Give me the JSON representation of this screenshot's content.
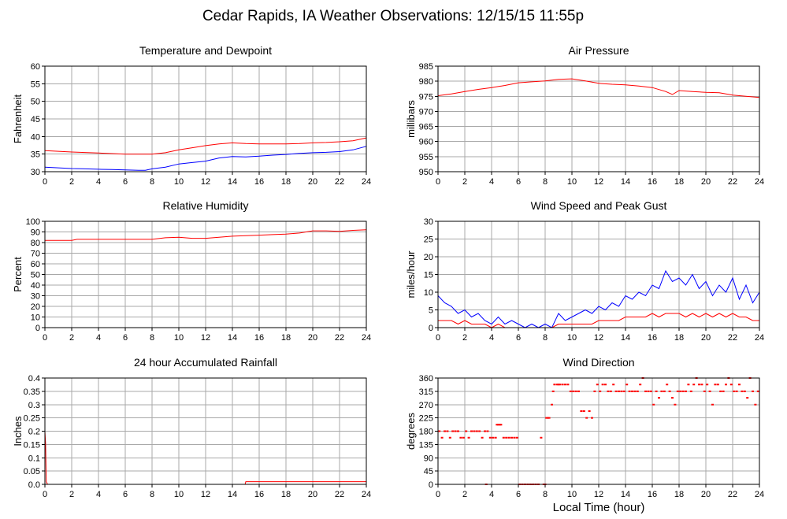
{
  "figure": {
    "title": "Cedar Rapids, IA Weather Observations: 12/15/15 11:55p",
    "xlabel": "Local Time (hour)"
  },
  "colors": {
    "red": "#ff0000",
    "blue": "#0000ff"
  },
  "chart_data": [
    {
      "id": "temp",
      "type": "line",
      "title": "Temperature and Dewpoint",
      "ylabel": "Fahrenheit",
      "xlim": [
        0,
        24
      ],
      "ylim": [
        30,
        60
      ],
      "xticks": [
        0,
        2,
        4,
        6,
        8,
        10,
        12,
        14,
        16,
        18,
        20,
        22,
        24
      ],
      "yticks": [
        30,
        35,
        40,
        45,
        50,
        55,
        60
      ],
      "grid": true,
      "series": [
        {
          "color": "#ff0000",
          "x": [
            0,
            2,
            4,
            6,
            8,
            9,
            10,
            11,
            12,
            13,
            14,
            15,
            16,
            17,
            18,
            19,
            20,
            21,
            22,
            23,
            24
          ],
          "y": [
            36.0,
            35.6,
            35.3,
            35.0,
            35.0,
            35.4,
            36.2,
            36.8,
            37.4,
            37.9,
            38.2,
            38.0,
            37.9,
            37.9,
            37.9,
            38.0,
            38.2,
            38.3,
            38.5,
            38.8,
            39.6
          ]
        },
        {
          "color": "#0000ff",
          "x": [
            0,
            1,
            2,
            3,
            4,
            5,
            6,
            7,
            7.5,
            8,
            9,
            10,
            11,
            12,
            13,
            14,
            15,
            16,
            17,
            18,
            19,
            20,
            21,
            22,
            23,
            24
          ],
          "y": [
            31.3,
            31.1,
            30.9,
            30.8,
            30.7,
            30.6,
            30.5,
            30.4,
            30.4,
            30.8,
            31.3,
            32.2,
            32.6,
            33.0,
            33.9,
            34.3,
            34.2,
            34.4,
            34.7,
            34.9,
            35.2,
            35.4,
            35.5,
            35.7,
            36.2,
            37.2
          ]
        }
      ]
    },
    {
      "id": "pressure",
      "type": "line",
      "title": "Air Pressure",
      "ylabel": "millibars",
      "xlim": [
        0,
        24
      ],
      "ylim": [
        950,
        985
      ],
      "xticks": [
        0,
        2,
        4,
        6,
        8,
        10,
        12,
        14,
        16,
        18,
        20,
        22,
        24
      ],
      "yticks": [
        950,
        955,
        960,
        965,
        970,
        975,
        980,
        985
      ],
      "grid": true,
      "series": [
        {
          "color": "#ff0000",
          "x": [
            0,
            1,
            2,
            3,
            4,
            5,
            6,
            7,
            8,
            9,
            10,
            11,
            12,
            13,
            14,
            15,
            16,
            17,
            17.5,
            18,
            19,
            20,
            21,
            22,
            23,
            24
          ],
          "y": [
            975.2,
            975.8,
            976.6,
            977.3,
            977.9,
            978.6,
            979.5,
            979.8,
            980.1,
            980.6,
            980.8,
            980.1,
            979.3,
            979.0,
            978.8,
            978.4,
            977.9,
            976.6,
            975.6,
            976.9,
            976.6,
            976.3,
            976.2,
            975.4,
            975.0,
            974.6
          ]
        }
      ]
    },
    {
      "id": "humidity",
      "type": "line",
      "title": "Relative Humidity",
      "ylabel": "Percent",
      "xlim": [
        0,
        24
      ],
      "ylim": [
        0,
        100
      ],
      "xticks": [
        0,
        2,
        4,
        6,
        8,
        10,
        12,
        14,
        16,
        18,
        20,
        22,
        24
      ],
      "yticks": [
        0,
        10,
        20,
        30,
        40,
        50,
        60,
        70,
        80,
        90,
        100
      ],
      "grid": true,
      "series": [
        {
          "color": "#ff0000",
          "x": [
            0,
            2,
            2.4,
            4,
            6,
            8,
            9,
            10,
            11,
            12,
            13,
            14,
            15,
            16,
            17,
            18,
            19,
            20,
            21,
            22,
            23,
            24
          ],
          "y": [
            82.0,
            82.0,
            83.0,
            83.0,
            83.0,
            83.0,
            84.5,
            85.0,
            84.0,
            84.0,
            85.0,
            86.0,
            86.5,
            87.0,
            87.5,
            88.0,
            89.0,
            91.0,
            91.0,
            90.5,
            91.5,
            92.0
          ]
        }
      ]
    },
    {
      "id": "wind_speed",
      "type": "line",
      "title": "Wind Speed and Peak Gust",
      "ylabel": "miles/hour",
      "xlim": [
        0,
        24
      ],
      "ylim": [
        0,
        30
      ],
      "xticks": [
        0,
        2,
        4,
        6,
        8,
        10,
        12,
        14,
        16,
        18,
        20,
        22,
        24
      ],
      "yticks": [
        0,
        5,
        10,
        15,
        20,
        25,
        30
      ],
      "grid": true,
      "series": [
        {
          "color": "#0000ff",
          "x": [
            0,
            0.5,
            1,
            1.5,
            2,
            2.5,
            3,
            3.5,
            4,
            4.5,
            5,
            5.5,
            6,
            6.5,
            7,
            7.5,
            8,
            8.5,
            9,
            9.5,
            10,
            10.5,
            11,
            11.5,
            12,
            12.5,
            13,
            13.5,
            14,
            14.5,
            15,
            15.5,
            16,
            16.5,
            17,
            17.5,
            18,
            18.5,
            19,
            19.5,
            20,
            20.5,
            21,
            21.5,
            22,
            22.5,
            23,
            23.5,
            24
          ],
          "y": [
            9,
            7,
            6,
            4,
            5,
            3,
            4,
            2,
            1,
            3,
            1,
            2,
            1,
            0,
            1,
            0,
            1,
            0,
            4,
            2,
            3,
            4,
            5,
            4,
            6,
            5,
            7,
            6,
            9,
            8,
            10,
            9,
            12,
            11,
            16,
            13,
            14,
            12,
            15,
            11,
            13,
            9,
            12,
            10,
            14,
            8,
            12,
            7,
            10
          ]
        },
        {
          "color": "#ff0000",
          "x": [
            0,
            0.5,
            1,
            1.5,
            2,
            2.5,
            3,
            3.5,
            4,
            4.5,
            5,
            5.5,
            6,
            6.5,
            7,
            7.5,
            8,
            8.5,
            9,
            9.5,
            10,
            10.5,
            11,
            11.5,
            12,
            12.5,
            13,
            13.5,
            14,
            14.5,
            15,
            15.5,
            16,
            16.5,
            17,
            17.5,
            18,
            18.5,
            19,
            19.5,
            20,
            20.5,
            21,
            21.5,
            22,
            22.5,
            23,
            23.5,
            24
          ],
          "y": [
            2,
            2,
            2,
            1,
            2,
            1,
            1,
            1,
            0,
            1,
            0,
            0,
            0,
            0,
            0,
            0,
            0,
            0,
            1,
            1,
            1,
            1,
            1,
            1,
            2,
            2,
            2,
            2,
            3,
            3,
            3,
            3,
            4,
            3,
            4,
            4,
            4,
            3,
            4,
            3,
            4,
            3,
            4,
            3,
            4,
            3,
            3,
            2,
            2
          ]
        }
      ]
    },
    {
      "id": "rain",
      "type": "line",
      "title": "24 hour Accumulated Rainfall",
      "ylabel": "Inches",
      "xlim": [
        0,
        24
      ],
      "ylim": [
        0,
        0.4
      ],
      "xticks": [
        0,
        2,
        4,
        6,
        8,
        10,
        12,
        14,
        16,
        18,
        20,
        22,
        24
      ],
      "yticks": [
        0,
        0.05,
        0.1,
        0.15,
        0.2,
        0.25,
        0.3,
        0.35,
        0.4
      ],
      "ytick_labels": [
        "0.0",
        "0.05",
        "0.1",
        "0.15",
        "0.2",
        "0.25",
        "0.3",
        "0.35",
        "0.4"
      ],
      "grid": true,
      "series": [
        {
          "color": "#ff0000",
          "x": [
            0,
            0.05,
            0.1,
            0.2,
            14.95,
            15.0,
            24
          ],
          "y": [
            0.2,
            0.15,
            0.01,
            0.0,
            0.0,
            0.01,
            0.01
          ]
        }
      ]
    },
    {
      "id": "wind_dir",
      "type": "scatter",
      "title": "Wind Direction",
      "ylabel": "degrees",
      "xlim": [
        0,
        24
      ],
      "ylim": [
        0,
        360
      ],
      "xticks": [
        0,
        2,
        4,
        6,
        8,
        10,
        12,
        14,
        16,
        18,
        20,
        22,
        24
      ],
      "yticks": [
        0,
        45,
        90,
        135,
        180,
        225,
        270,
        315,
        360
      ],
      "grid": true,
      "series": [
        {
          "color": "#ff0000",
          "x": [
            0.1,
            0.3,
            0.5,
            0.7,
            0.9,
            1.1,
            1.3,
            1.5,
            1.7,
            1.9,
            2.1,
            2.3,
            2.5,
            2.7,
            2.9,
            3.1,
            3.3,
            3.5,
            3.7,
            3.9,
            4.1,
            4.3,
            4.5,
            4.7,
            4.9,
            5.1,
            5.3,
            5.5,
            5.7,
            5.9,
            6.1,
            6.3,
            6.5,
            6.7,
            6.9,
            7.1,
            7.3,
            7.5,
            7.7,
            7.9,
            8.1,
            8.3,
            8.5,
            8.7,
            8.9,
            9.1,
            9.3,
            9.5,
            9.7,
            9.9,
            10.1,
            10.3,
            10.5,
            10.7,
            10.9,
            11.1,
            11.3,
            11.5,
            11.7,
            11.9,
            12.1,
            12.3,
            12.5,
            12.7,
            12.9,
            13.1,
            13.3,
            13.5,
            13.7,
            13.9,
            14.1,
            14.3,
            14.5,
            14.7,
            14.9,
            15.1,
            15.3,
            15.5,
            15.7,
            15.9,
            16.1,
            16.3,
            16.5,
            16.7,
            16.9,
            17.1,
            17.3,
            17.5,
            17.7,
            17.9,
            18.1,
            18.3,
            18.5,
            18.7,
            18.9,
            19.1,
            19.3,
            19.5,
            19.7,
            19.9,
            20.1,
            20.3,
            20.5,
            20.7,
            20.9,
            21.1,
            21.3,
            21.5,
            21.7,
            21.9,
            22.1,
            22.3,
            22.5,
            22.7,
            22.9,
            23.1,
            23.3,
            23.5,
            23.7,
            23.9,
            3.6,
            4.4,
            4.6,
            8.0,
            8.2,
            8.6,
            9.0
          ],
          "y": [
            180,
            158,
            180,
            180,
            158,
            180,
            180,
            180,
            158,
            158,
            180,
            158,
            180,
            180,
            180,
            180,
            158,
            180,
            180,
            158,
            158,
            158,
            202,
            202,
            158,
            158,
            158,
            158,
            158,
            158,
            0,
            0,
            0,
            0,
            0,
            0,
            0,
            0,
            158,
            0,
            225,
            225,
            270,
            338,
            338,
            338,
            338,
            338,
            338,
            315,
            315,
            315,
            315,
            248,
            248,
            225,
            248,
            225,
            315,
            338,
            315,
            338,
            338,
            315,
            315,
            338,
            315,
            315,
            315,
            315,
            338,
            315,
            315,
            315,
            315,
            338,
            360,
            315,
            315,
            315,
            270,
            315,
            293,
            315,
            315,
            338,
            315,
            293,
            270,
            315,
            315,
            315,
            315,
            338,
            315,
            338,
            360,
            338,
            338,
            315,
            338,
            315,
            270,
            338,
            338,
            315,
            315,
            338,
            360,
            338,
            315,
            315,
            338,
            315,
            315,
            293,
            360,
            315,
            270,
            315,
            0,
            202,
            202,
            0,
            225,
            315,
            338
          ]
        }
      ]
    }
  ]
}
